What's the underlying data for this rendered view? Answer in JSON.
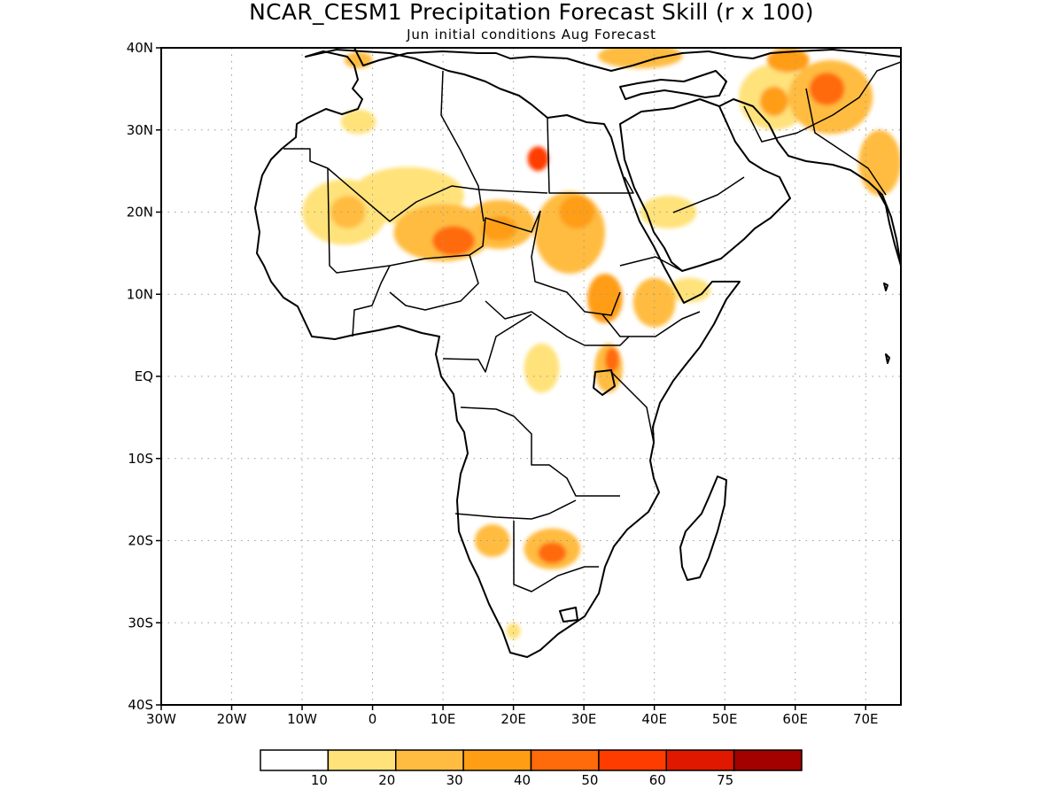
{
  "title": "NCAR_CESM1 Precipitation Forecast Skill (r x 100)",
  "subtitle": "Jun initial conditions  Aug Forecast",
  "lat_labels": [
    "40N",
    "30N",
    "20N",
    "10N",
    "EQ",
    "10S",
    "20S",
    "30S",
    "40S"
  ],
  "lon_labels": [
    "30W",
    "20W",
    "10W",
    "0",
    "10E",
    "20E",
    "30E",
    "40E",
    "50E",
    "60E",
    "70E"
  ],
  "legend": {
    "thresholds": [
      "10",
      "20",
      "30",
      "40",
      "50",
      "60",
      "75"
    ],
    "colors": [
      "#ffffff",
      "#ffe27a",
      "#ffbc40",
      "#ff9d14",
      "#ff6a0a",
      "#ff3c00",
      "#e01800",
      "#a30000"
    ]
  },
  "map_data": {
    "domain": {
      "lon": [
        -30,
        75
      ],
      "lat": [
        -40,
        40
      ]
    },
    "skill_regions": [
      {
        "name": "Sahara north central",
        "lon": -2,
        "lat": 31,
        "rx": 2.5,
        "ry": 1.5,
        "level": 1
      },
      {
        "name": "Algeria coast",
        "lon": -2,
        "lat": 38.5,
        "rx": 2,
        "ry": 1,
        "level": 2
      },
      {
        "name": "Mauritania-Mali",
        "lon": -4,
        "lat": 20,
        "rx": 6,
        "ry": 4,
        "level": 1
      },
      {
        "name": "Mali core",
        "lon": -3.5,
        "lat": 20,
        "rx": 2.5,
        "ry": 2,
        "level": 2
      },
      {
        "name": "Algeria-Niger belt",
        "lon": 5,
        "lat": 22,
        "rx": 8,
        "ry": 3.5,
        "level": 1
      },
      {
        "name": "Niger",
        "lon": 10,
        "lat": 17.5,
        "rx": 7,
        "ry": 3.5,
        "level": 2
      },
      {
        "name": "Niger core",
        "lon": 11.5,
        "lat": 16.5,
        "rx": 3,
        "ry": 1.8,
        "level": 4
      },
      {
        "name": "Chad",
        "lon": 18,
        "lat": 18.5,
        "rx": 5,
        "ry": 3,
        "level": 2
      },
      {
        "name": "Chad core",
        "lon": 18,
        "lat": 18,
        "rx": 2.5,
        "ry": 1.5,
        "level": 3
      },
      {
        "name": "Libya-Chad border",
        "lon": 23.5,
        "lat": 26.5,
        "rx": 1.5,
        "ry": 1.5,
        "level": 5
      },
      {
        "name": "Sudan",
        "lon": 28,
        "lat": 17.5,
        "rx": 5,
        "ry": 5,
        "level": 2
      },
      {
        "name": "Sudan core",
        "lon": 29,
        "lat": 20,
        "rx": 2.5,
        "ry": 2,
        "level": 3
      },
      {
        "name": "South Sudan",
        "lon": 33,
        "lat": 9.5,
        "rx": 2.5,
        "ry": 3,
        "level": 3
      },
      {
        "name": "Ethiopia",
        "lon": 40,
        "lat": 9,
        "rx": 3,
        "ry": 3,
        "level": 2
      },
      {
        "name": "Somaliland",
        "lon": 45,
        "lat": 10.5,
        "rx": 3,
        "ry": 1.5,
        "level": 1
      },
      {
        "name": "Arabia",
        "lon": 42,
        "lat": 20,
        "rx": 4,
        "ry": 2,
        "level": 1
      },
      {
        "name": "Congo east",
        "lon": 24,
        "lat": 1,
        "rx": 2.5,
        "ry": 3,
        "level": 1
      },
      {
        "name": "Uganda",
        "lon": 33.5,
        "lat": 1,
        "rx": 2,
        "ry": 3,
        "level": 2
      },
      {
        "name": "Uganda core",
        "lon": 34,
        "lat": 2,
        "rx": 1,
        "ry": 1.5,
        "level": 4
      },
      {
        "name": "Namibia",
        "lon": 17,
        "lat": -20,
        "rx": 2.5,
        "ry": 2,
        "level": 2
      },
      {
        "name": "Botswana-Zimbabwe",
        "lon": 25.5,
        "lat": -21,
        "rx": 4,
        "ry": 2.5,
        "level": 2
      },
      {
        "name": "Botswana core",
        "lon": 25.5,
        "lat": -21.5,
        "rx": 2,
        "ry": 1.3,
        "level": 4
      },
      {
        "name": "South Africa west",
        "lon": 20,
        "lat": -31,
        "rx": 1,
        "ry": 1,
        "level": 1
      },
      {
        "name": "Iran",
        "lon": 57,
        "lat": 34,
        "rx": 5,
        "ry": 4,
        "level": 1
      },
      {
        "name": "Iran core",
        "lon": 57,
        "lat": 33.5,
        "rx": 2,
        "ry": 1.8,
        "level": 3
      },
      {
        "name": "Afghanistan",
        "lon": 65,
        "lat": 34,
        "rx": 6,
        "ry": 4.5,
        "level": 2
      },
      {
        "name": "Afghanistan core",
        "lon": 64.5,
        "lat": 35,
        "rx": 2.5,
        "ry": 2,
        "level": 4
      },
      {
        "name": "Caspian south",
        "lon": 59,
        "lat": 38.5,
        "rx": 3,
        "ry": 1.5,
        "level": 3
      },
      {
        "name": "Turkey-Caucasus",
        "lon": 38,
        "lat": 39,
        "rx": 6,
        "ry": 1.5,
        "level": 2
      },
      {
        "name": "Pakistan-India",
        "lon": 72,
        "lat": 26,
        "rx": 3,
        "ry": 4,
        "level": 2
      }
    ]
  }
}
